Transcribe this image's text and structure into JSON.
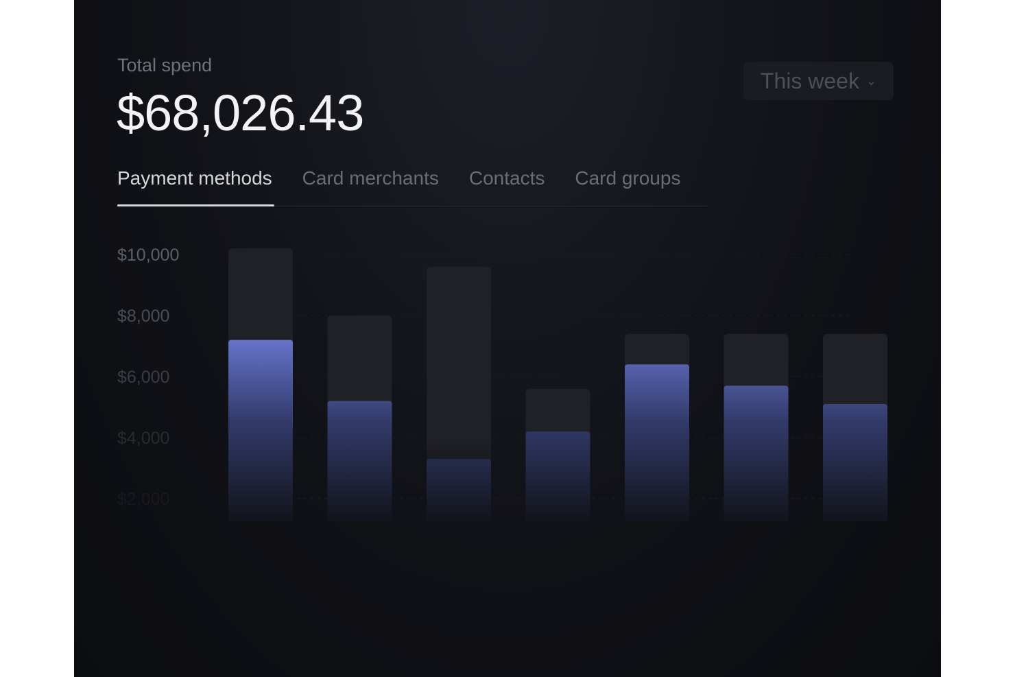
{
  "header": {
    "label": "Total spend",
    "total": "$68,026.43"
  },
  "period": {
    "selected": "This week",
    "icon": "chevron-down-icon"
  },
  "tabs": [
    {
      "label": "Payment methods",
      "active": true
    },
    {
      "label": "Card merchants"
    },
    {
      "label": "Contacts"
    },
    {
      "label": "Card groups"
    }
  ],
  "colors": {
    "bar": "#6b7bd6",
    "track": "#202127",
    "background": "#111217"
  },
  "chart_data": {
    "type": "bar",
    "ylim": [
      0,
      10000
    ],
    "yticks": [
      "$10,000",
      "$8,000",
      "$6,000",
      "$4,000",
      "$2,000"
    ],
    "ytick_values": [
      10000,
      8000,
      6000,
      4000,
      2000
    ],
    "grid": true,
    "series": [
      {
        "values": [
          7200,
          5200,
          3300,
          4200,
          6400,
          5700,
          5100
        ]
      },
      {
        "values": [
          10200,
          8000,
          9600,
          5600,
          7400,
          7400,
          7400
        ]
      }
    ]
  }
}
